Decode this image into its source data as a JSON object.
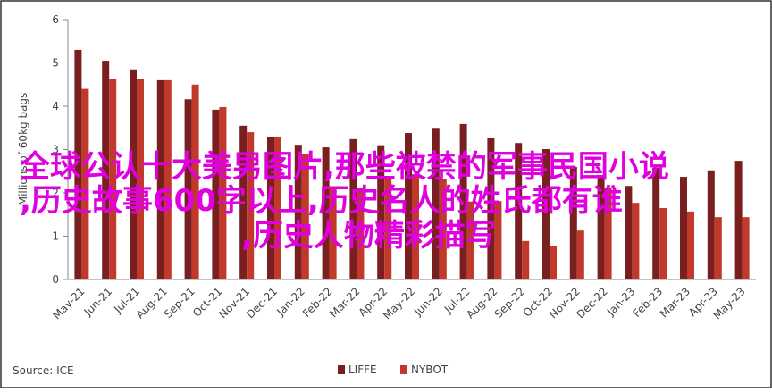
{
  "chart_data": {
    "type": "bar",
    "y_axis_label": "Millions of 60kg bags",
    "source": "Source: ICE",
    "categories": [
      "May-21",
      "Jun-21",
      "Jul-21",
      "Aug-21",
      "Sep-21",
      "Oct-21",
      "Nov-21",
      "Dec-21",
      "Jan-22",
      "Feb-22",
      "Mar-22",
      "Apr-22",
      "May-22",
      "Jun-22",
      "Jul-22",
      "Aug-22",
      "Sep-22",
      "Oct-22",
      "Nov-22",
      "Dec-22",
      "Jan-23",
      "Feb-23",
      "Mar-23",
      "Apr-23",
      "May-23"
    ],
    "series": [
      {
        "name": "LIFFE",
        "color": "#7a1f1f",
        "values": [
          5.3,
          5.05,
          4.85,
          4.6,
          4.16,
          3.92,
          3.55,
          3.3,
          3.11,
          3.05,
          3.24,
          3.1,
          3.38,
          3.5,
          3.59,
          3.26,
          3.15,
          3.01,
          2.6,
          2.41,
          2.16,
          2.58,
          2.37,
          2.52,
          2.74
        ]
      },
      {
        "name": "NYBOT",
        "color": "#c0392b",
        "values": [
          4.4,
          4.64,
          4.62,
          4.6,
          4.5,
          3.98,
          3.4,
          3.3,
          2.9,
          2.14,
          2.12,
          2.33,
          2.43,
          2.33,
          1.8,
          1.81,
          0.89,
          0.78,
          1.13,
          2.12,
          1.77,
          1.65,
          1.57,
          1.44,
          1.44
        ]
      }
    ],
    "ylim": [
      0,
      6
    ],
    "yticks": [
      0,
      1,
      2,
      3,
      4,
      5,
      6
    ],
    "grid": false,
    "overlay": [
      "全球公认十大美男图片,那些被禁的军事民国小说",
      ",历史故事600字以上,历史名人的姓氏都有谁",
      ",历史人物精彩描写"
    ]
  }
}
